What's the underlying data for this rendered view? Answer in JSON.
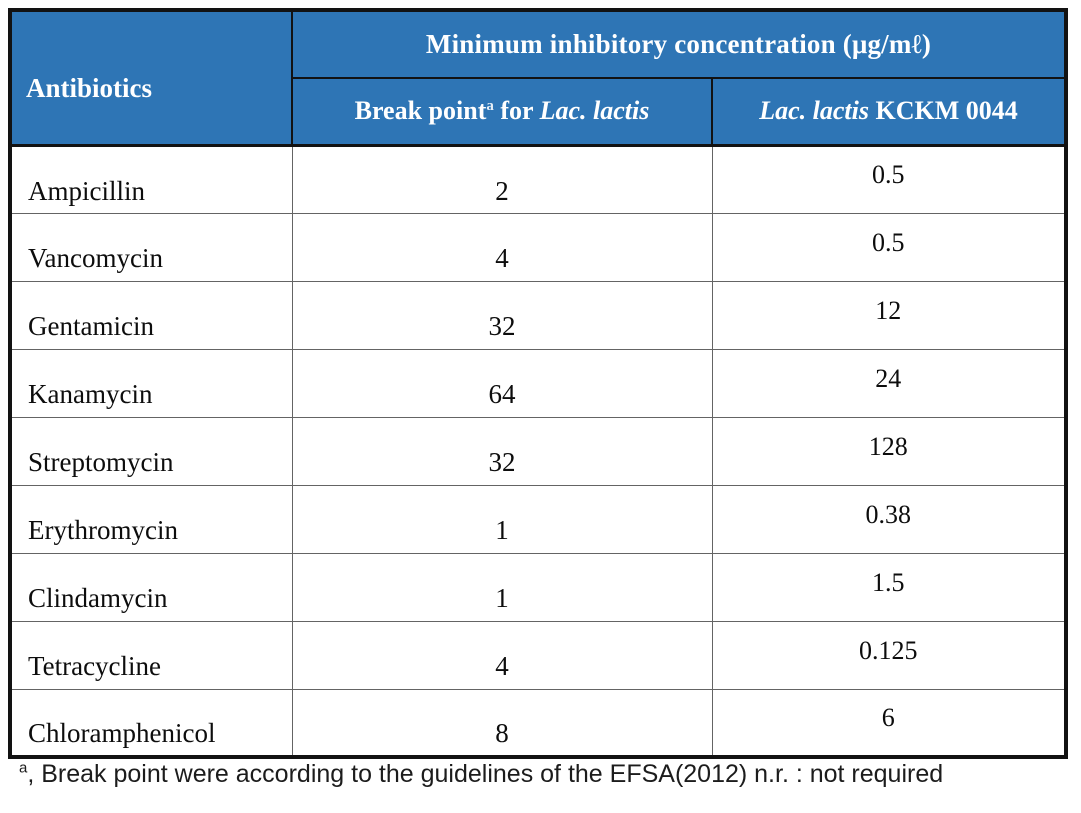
{
  "table": {
    "header": {
      "antibiotics": "Antibiotics",
      "mic_title": "Minimum inhibitory concentration (μg/mℓ)",
      "break_point": {
        "text": "Break point",
        "sup": "a",
        "mid": " for ",
        "species": "Lac. lactis"
      },
      "kckm": {
        "species": "Lac. lactis",
        "rest": " KCKM 0044"
      }
    },
    "rows": [
      {
        "name": "Ampicillin",
        "break_point": "2",
        "kckm": "0.5"
      },
      {
        "name": "Vancomycin",
        "break_point": "4",
        "kckm": "0.5"
      },
      {
        "name": "Gentamicin",
        "break_point": "32",
        "kckm": "12"
      },
      {
        "name": "Kanamycin",
        "break_point": "64",
        "kckm": "24"
      },
      {
        "name": "Streptomycin",
        "break_point": "32",
        "kckm": "128"
      },
      {
        "name": "Erythromycin",
        "break_point": "1",
        "kckm": "0.38"
      },
      {
        "name": "Clindamycin",
        "break_point": "1",
        "kckm": "1.5"
      },
      {
        "name": "Tetracycline",
        "break_point": "4",
        "kckm": "0.125"
      },
      {
        "name": "Chloramphenicol",
        "break_point": "8",
        "kckm": "6"
      }
    ]
  },
  "footnote": {
    "sup": "a",
    "text": ", Break point were according to the guidelines of the EFSA(2012) n.r. : not required"
  },
  "colors": {
    "header_bg": "#2E75B5",
    "header_text": "#FFFFFF",
    "outer_border": "#121212",
    "body_grid": "#646464"
  }
}
